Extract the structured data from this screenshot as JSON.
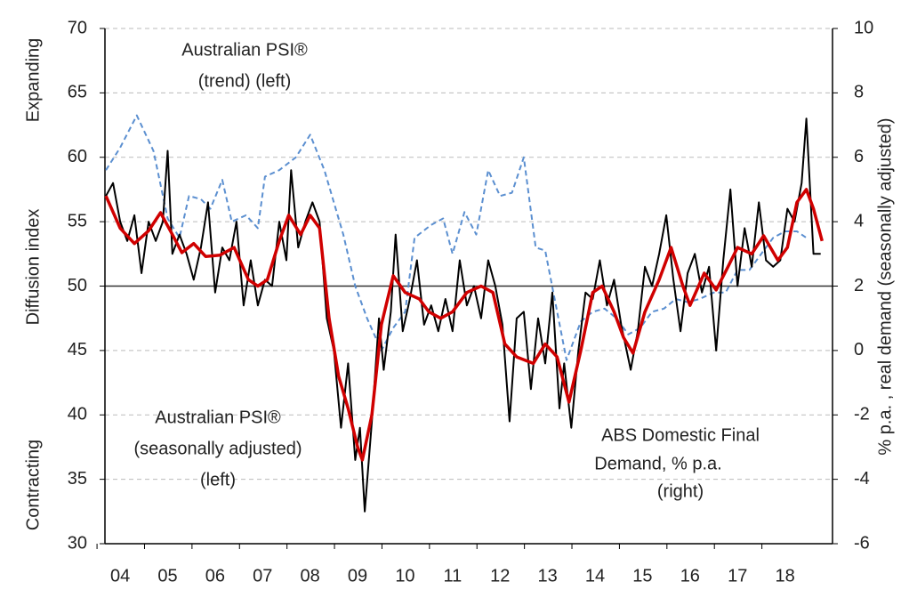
{
  "chart_data": {
    "type": "line",
    "y_label_top": "Expanding",
    "y_label": "Diffusion index",
    "y_label_bottom": "Contracting",
    "y2_label": "% p.a. , real demand (seasonally adjusted)",
    "xlim": [
      3.68,
      19.0
    ],
    "xticks": [
      {
        "value": 4,
        "label": "04"
      },
      {
        "value": 5,
        "label": "05"
      },
      {
        "value": 6,
        "label": "06"
      },
      {
        "value": 7,
        "label": "07"
      },
      {
        "value": 8,
        "label": "08"
      },
      {
        "value": 9,
        "label": "09"
      },
      10,
      11,
      12,
      13,
      14,
      15,
      16,
      17,
      18
    ],
    "ylim": [
      30,
      70
    ],
    "yticks": [
      30,
      35,
      40,
      45,
      50,
      55,
      60,
      65,
      70
    ],
    "y2lim": [
      -6,
      10
    ],
    "y2ticks": [
      -6,
      -4,
      -2,
      0,
      2,
      4,
      6,
      8,
      10
    ],
    "y2_negative_color": "#e00000",
    "grid": true,
    "reference_line": 50,
    "series": [
      {
        "name": "Australian PSI® (seasonally adjusted)",
        "color": "#000000",
        "width": 2,
        "x": [
          3.7,
          3.85,
          4.0,
          4.15,
          4.3,
          4.45,
          4.6,
          4.75,
          4.9,
          5.0,
          5.1,
          5.25,
          5.4,
          5.55,
          5.7,
          5.85,
          6.0,
          6.15,
          6.3,
          6.45,
          6.6,
          6.75,
          6.9,
          7.05,
          7.2,
          7.35,
          7.5,
          7.6,
          7.75,
          7.9,
          8.05,
          8.2,
          8.35,
          8.5,
          8.65,
          8.8,
          8.95,
          9.05,
          9.15,
          9.3,
          9.45,
          9.55,
          9.7,
          9.8,
          9.95,
          10.1,
          10.25,
          10.4,
          10.55,
          10.7,
          10.85,
          11.0,
          11.15,
          11.3,
          11.45,
          11.6,
          11.75,
          11.9,
          12.05,
          12.2,
          12.35,
          12.5,
          12.65,
          12.8,
          12.95,
          13.1,
          13.25,
          13.35,
          13.5,
          13.65,
          13.8,
          13.95,
          14.1,
          14.25,
          14.4,
          14.55,
          14.75,
          14.9,
          15.05,
          15.2,
          15.35,
          15.5,
          15.65,
          15.8,
          15.95,
          16.1,
          16.25,
          16.4,
          16.55,
          16.7,
          16.85,
          17.0,
          17.15,
          17.3,
          17.45,
          17.6,
          17.75,
          17.9,
          18.05,
          18.2,
          18.35,
          18.45,
          18.6,
          18.75
        ],
        "values": [
          57,
          58,
          55,
          53.5,
          55.5,
          51,
          55,
          53.5,
          55,
          60.5,
          52.5,
          54,
          52.5,
          50.5,
          53,
          56.5,
          49.5,
          53,
          52,
          55,
          48.5,
          52,
          48.5,
          50.5,
          50,
          55,
          52,
          59,
          53,
          55,
          56.5,
          55,
          47.5,
          45,
          39,
          44,
          36.5,
          39,
          32.5,
          39.5,
          47.5,
          43.5,
          48,
          54,
          46.5,
          49,
          52,
          47,
          48.5,
          46.5,
          49,
          46.5,
          52,
          48.5,
          50,
          47.5,
          52,
          50,
          47,
          39.5,
          47.5,
          48,
          42,
          47.5,
          44,
          49.5,
          40.5,
          44,
          39,
          45,
          49.5,
          49,
          52,
          48.5,
          50.5,
          47,
          43.5,
          46.5,
          51.5,
          50,
          52.5,
          55.5,
          50.5,
          46.5,
          51,
          52.5,
          49.5,
          51.5,
          45,
          52,
          57.5,
          50,
          54.5,
          51.5,
          56.5,
          52,
          51.5,
          52,
          56,
          55,
          58,
          63,
          52.5,
          52.5
        ]
      },
      {
        "name": "Australian PSI® (trend)",
        "color": "#d00000",
        "width": 3.5,
        "x": [
          3.7,
          4.0,
          4.3,
          4.6,
          4.85,
          5.1,
          5.3,
          5.55,
          5.8,
          6.1,
          6.4,
          6.7,
          6.9,
          7.1,
          7.35,
          7.55,
          7.8,
          8.0,
          8.2,
          8.4,
          8.6,
          8.8,
          9.0,
          9.1,
          9.3,
          9.5,
          9.75,
          10.0,
          10.3,
          10.5,
          10.75,
          11.0,
          11.3,
          11.6,
          11.85,
          12.1,
          12.35,
          12.7,
          12.95,
          13.2,
          13.45,
          13.7,
          13.95,
          14.15,
          14.4,
          14.6,
          14.8,
          15.05,
          15.35,
          15.6,
          15.85,
          16.0,
          16.3,
          16.55,
          16.8,
          17.0,
          17.3,
          17.55,
          17.85,
          18.05,
          18.25,
          18.45,
          18.6,
          18.78
        ],
        "values": [
          57,
          54.5,
          53.3,
          54.3,
          55.7,
          54,
          52.6,
          53.3,
          52.3,
          52.4,
          53,
          50.5,
          50,
          50.5,
          53.5,
          55.5,
          54,
          55.5,
          54.5,
          47.5,
          43,
          40.5,
          37.5,
          36.5,
          40,
          47,
          50.8,
          49.5,
          49,
          48,
          47.5,
          48,
          49.5,
          50,
          49.5,
          45.5,
          44.5,
          44,
          45.5,
          44.5,
          41,
          45,
          49.5,
          50,
          48,
          46,
          44.8,
          48,
          50.5,
          53,
          50,
          48.5,
          51,
          49.7,
          51.5,
          53,
          52.5,
          53.9,
          52,
          53,
          56.5,
          57.5,
          56,
          53.5
        ]
      },
      {
        "name": "ABS Domestic Final Demand, % p.a.",
        "color": "#5b8fd0",
        "width": 2,
        "dashed": true,
        "axis": "y2",
        "x": [
          3.7,
          4.0,
          4.35,
          4.7,
          5.0,
          5.25,
          5.45,
          5.7,
          5.9,
          6.15,
          6.35,
          6.65,
          6.9,
          7.05,
          7.35,
          7.7,
          8.0,
          8.3,
          8.7,
          8.95,
          9.2,
          9.5,
          9.75,
          10.0,
          10.2,
          10.55,
          10.8,
          11.0,
          11.25,
          11.5,
          11.75,
          12.0,
          12.25,
          12.5,
          12.75,
          12.95,
          13.15,
          13.4,
          13.7,
          13.95,
          14.2,
          14.45,
          14.7,
          14.95,
          15.2,
          15.45,
          15.7,
          15.95,
          16.2,
          16.5,
          16.75,
          17.0,
          17.25,
          17.5,
          17.75,
          18.0,
          18.25,
          18.45
        ],
        "values": [
          5.6,
          6.3,
          7.3,
          6.2,
          4.1,
          3.5,
          4.8,
          4.7,
          4.4,
          5.3,
          4.0,
          4.2,
          3.8,
          5.4,
          5.6,
          6.0,
          6.7,
          5.6,
          3.6,
          2.0,
          1.0,
          0,
          0.7,
          1.2,
          3.5,
          3.9,
          4.1,
          3.0,
          4.3,
          3.6,
          5.6,
          4.8,
          4.9,
          6.0,
          3.2,
          3.1,
          1.6,
          -0.3,
          0.9,
          1.2,
          1.3,
          1.0,
          0.5,
          0.7,
          1.2,
          1.3,
          1.6,
          1.5,
          1.6,
          1.8,
          1.8,
          2.5,
          2.5,
          3.0,
          3.5,
          3.7,
          3.7,
          3.5
        ]
      }
    ],
    "annotations": [
      {
        "lines": [
          "Australian PSI®",
          "(trend) (left)"
        ],
        "color": "#d00000"
      },
      {
        "lines": [
          "Australian PSI®",
          "(seasonally adjusted)",
          "(left)"
        ],
        "color": "#000000"
      },
      {
        "lines": [
          "ABS Domestic Final",
          "Demand, % p.a.",
          "(right)"
        ],
        "color": "#5b8fd0"
      }
    ]
  }
}
